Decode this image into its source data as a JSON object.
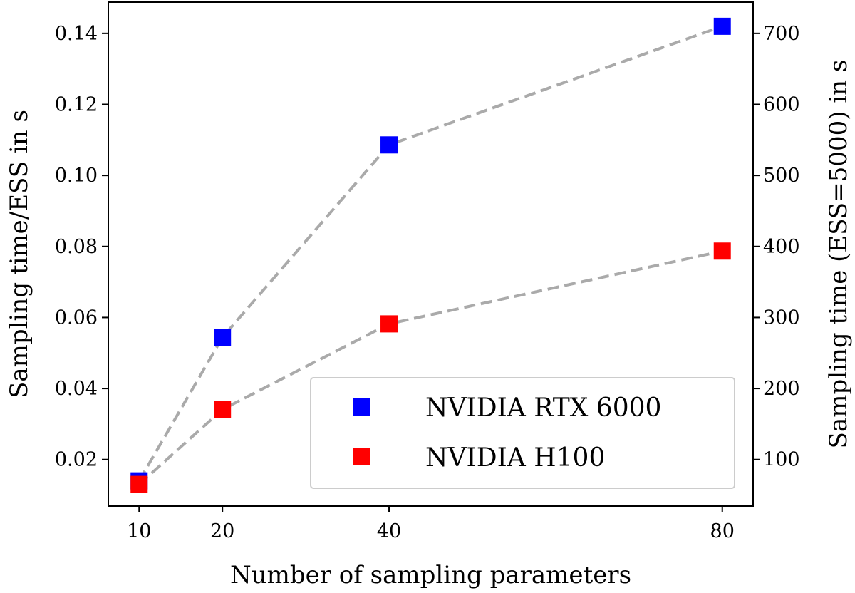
{
  "chart_data": {
    "type": "scatter",
    "title": "",
    "xlabel": "Number of sampling parameters",
    "ylabel": "Sampling time/ESS in s",
    "ylabel_right": "Sampling time (ESS=5000) in s",
    "x": [
      10,
      20,
      40,
      80
    ],
    "x_ticks": [
      "10",
      "20",
      "40",
      "80"
    ],
    "xlim": [
      6.3,
      83.7
    ],
    "ylim": [
      0.0069,
      0.1488
    ],
    "y_ticks": [
      0.02,
      0.04,
      0.06,
      0.08,
      0.1,
      0.12,
      0.14
    ],
    "y_tick_labels": [
      "0.02",
      "0.04",
      "0.06",
      "0.08",
      "0.10",
      "0.12",
      "0.14"
    ],
    "y_right_ticks": [
      100,
      200,
      300,
      400,
      500,
      600,
      700
    ],
    "y_right_tick_labels": [
      "100",
      "200",
      "300",
      "400",
      "500",
      "600",
      "700"
    ],
    "ess": 5000,
    "connector_style": "dashed",
    "grid": false,
    "legend_position": "lower-right",
    "series": [
      {
        "name": "NVIDIA RTX 6000",
        "color": "#0000ff",
        "values": [
          0.014,
          0.0544,
          0.1086,
          0.142
        ]
      },
      {
        "name": "NVIDIA H100",
        "color": "#ff0000",
        "values": [
          0.013,
          0.0341,
          0.0582,
          0.0787
        ]
      }
    ],
    "connector_color": "#aaaaaa"
  }
}
